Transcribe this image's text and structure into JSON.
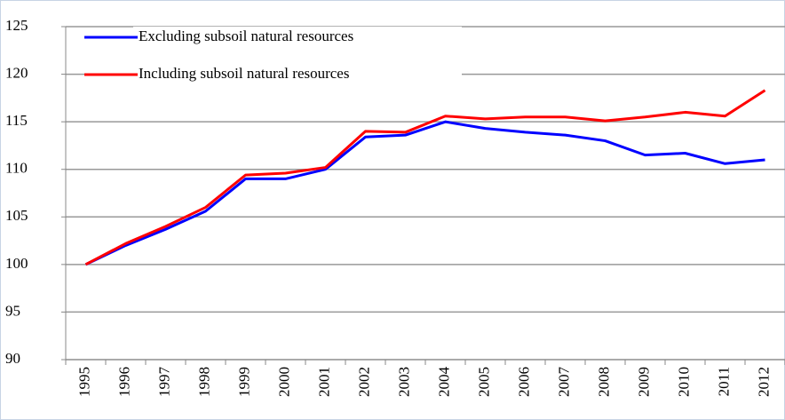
{
  "chart_data": {
    "type": "line",
    "categories": [
      "1995",
      "1996",
      "1997",
      "1998",
      "1999",
      "2000",
      "2001",
      "2002",
      "2003",
      "2004",
      "2005",
      "2006",
      "2007",
      "2008",
      "2009",
      "2010",
      "2011",
      "2012"
    ],
    "series": [
      {
        "name": "Excluding subsoil natural resources",
        "color": "#0000ff",
        "values": [
          100,
          102,
          103.7,
          105.6,
          109,
          109,
          110,
          113.4,
          113.6,
          115,
          114.3,
          113.9,
          113.6,
          113,
          111.5,
          111.7,
          110.6,
          111
        ]
      },
      {
        "name": "Including subsoil natural resources",
        "color": "#ff0000",
        "values": [
          100,
          102.2,
          104,
          106,
          109.4,
          109.6,
          110.2,
          114,
          113.9,
          115.6,
          115.3,
          115.5,
          115.5,
          115.1,
          115.5,
          116,
          115.6,
          118.3
        ]
      }
    ],
    "ylim": [
      90,
      125
    ],
    "yticks": [
      90,
      95,
      100,
      105,
      110,
      115,
      120,
      125
    ],
    "grid": true,
    "legend": "upper left"
  }
}
